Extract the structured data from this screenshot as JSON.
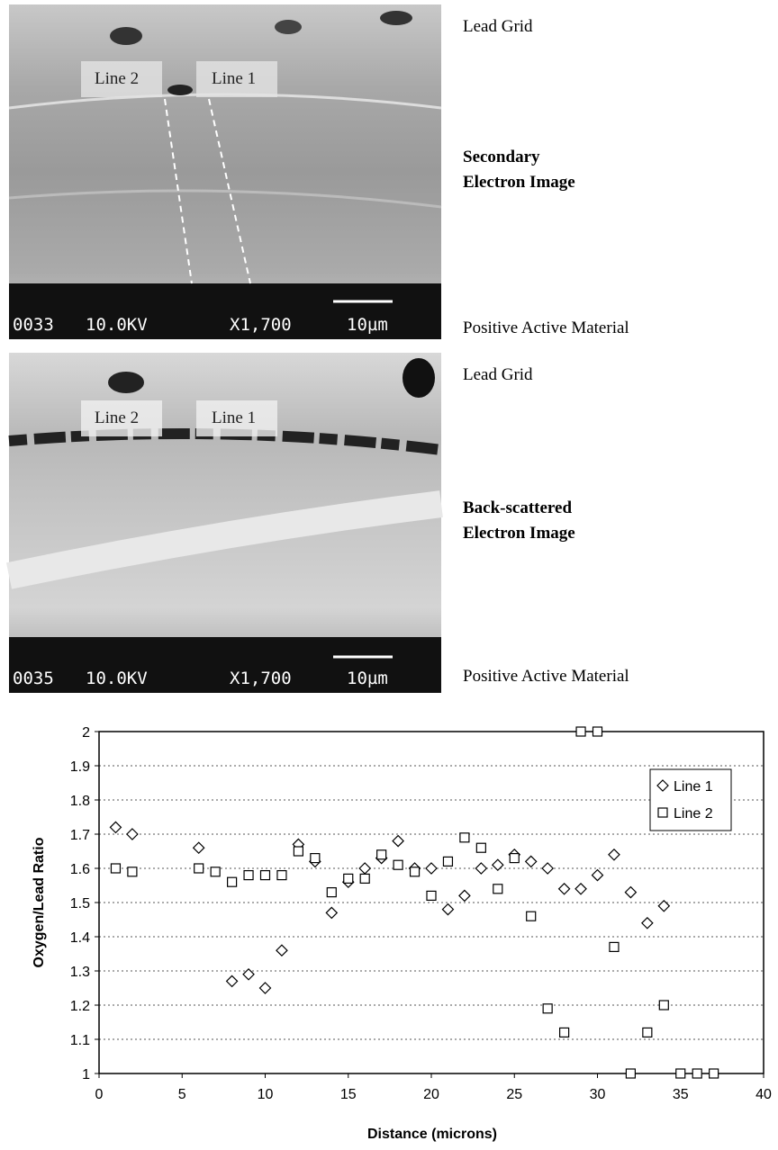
{
  "panels": [
    {
      "line_labels": [
        "Line 2",
        "Line 1"
      ],
      "info": [
        "0033",
        "10.0KV",
        "X1,700",
        "10µm"
      ],
      "top_label": "Lead Grid",
      "title_lines": [
        "Secondary",
        "Electron Image"
      ],
      "bottom_label": "Positive Active Material"
    },
    {
      "line_labels": [
        "Line 2",
        "Line 1"
      ],
      "info": [
        "0035",
        "10.0KV",
        "X1,700",
        "10µm"
      ],
      "top_label": "Lead Grid",
      "title_lines": [
        "Back-scattered",
        "Electron Image"
      ],
      "bottom_label": "Positive Active Material"
    }
  ],
  "chart_data": {
    "type": "scatter",
    "x_label": "Distance (microns)",
    "y_label": "Oxygen/Lead Ratio",
    "xlim": [
      0,
      40
    ],
    "ylim": [
      1,
      2
    ],
    "xticks": [
      0,
      5,
      10,
      15,
      20,
      25,
      30,
      35,
      40
    ],
    "yticks": [
      1,
      1.1,
      1.2,
      1.3,
      1.4,
      1.5,
      1.6,
      1.7,
      1.8,
      1.9,
      2
    ],
    "grid": true,
    "legend": "upper right",
    "series": [
      {
        "name": "Line 1",
        "marker": "diamond",
        "color": "#000000",
        "x": [
          1,
          2,
          6,
          8,
          9,
          10,
          11,
          12,
          13,
          14,
          15,
          16,
          17,
          18,
          19,
          20,
          21,
          22,
          23,
          24,
          25,
          26,
          27,
          28,
          29,
          30,
          31,
          32,
          33,
          34
        ],
        "values": [
          1.72,
          1.7,
          1.66,
          1.27,
          1.29,
          1.25,
          1.36,
          1.67,
          1.62,
          1.47,
          1.56,
          1.6,
          1.63,
          1.68,
          1.6,
          1.6,
          1.48,
          1.52,
          1.6,
          1.61,
          1.64,
          1.62,
          1.6,
          1.54,
          1.54,
          1.58,
          1.64,
          1.53,
          1.44,
          1.49
        ]
      },
      {
        "name": "Line 2",
        "marker": "square",
        "color": "#000000",
        "x": [
          1,
          2,
          6,
          7,
          8,
          9,
          10,
          11,
          12,
          13,
          14,
          15,
          16,
          17,
          18,
          19,
          20,
          21,
          22,
          23,
          24,
          25,
          26,
          27,
          28,
          29,
          30,
          31,
          32,
          33,
          34,
          35,
          36,
          37
        ],
        "values": [
          1.6,
          1.59,
          1.6,
          1.59,
          1.56,
          1.58,
          1.58,
          1.58,
          1.65,
          1.63,
          1.53,
          1.57,
          1.57,
          1.64,
          1.61,
          1.59,
          1.52,
          1.62,
          1.69,
          1.66,
          1.54,
          1.63,
          1.46,
          1.19,
          1.12,
          2,
          2,
          1.37,
          1,
          1.12,
          1.2,
          1,
          1,
          1
        ]
      }
    ]
  }
}
